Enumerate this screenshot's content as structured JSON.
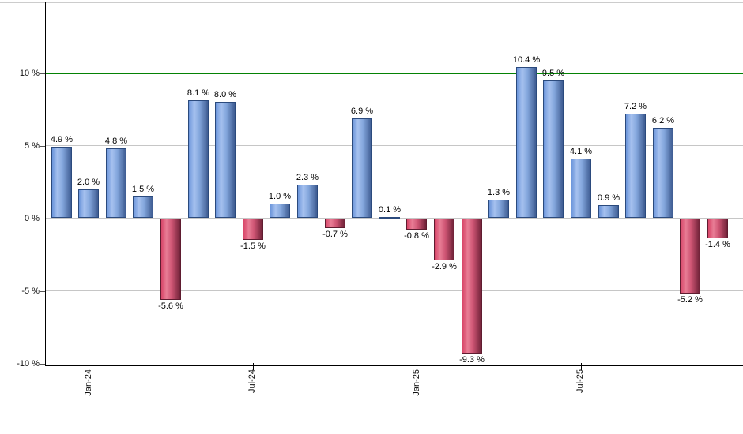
{
  "chart_data": {
    "type": "bar",
    "title": "",
    "xlabel": "",
    "ylabel": "",
    "unit": "%",
    "label_suffix": " %",
    "values": [
      4.9,
      2.0,
      4.8,
      1.5,
      -5.6,
      8.1,
      8.0,
      -1.5,
      1.0,
      2.3,
      -0.7,
      6.9,
      0.1,
      -0.8,
      -2.9,
      -9.3,
      1.3,
      10.4,
      9.5,
      4.1,
      0.9,
      7.2,
      6.2,
      -5.2,
      -1.4
    ],
    "bar_labels": [
      "4.9 %",
      "2.0 %",
      "4.8 %",
      "1.5 %",
      "-5.6 %",
      "8.1 %",
      "8.0 %",
      "-1.5 %",
      "1.0 %",
      "2.3 %",
      "-0.7 %",
      "6.9 %",
      "0.1 %",
      "-0.8 %",
      "-2.9 %",
      "-9.3 %",
      "1.3 %",
      "10.4 %",
      "9.5 %",
      "4.1 %",
      "0.9 %",
      "7.2 %",
      "6.2 %",
      "-5.2 %",
      "-1.4 %"
    ],
    "x_ticks": [
      {
        "label": "Jan-24",
        "bar_index": 1
      },
      {
        "label": "Jul-24",
        "bar_index": 7
      },
      {
        "label": "Jan-25",
        "bar_index": 13
      },
      {
        "label": "Jul-25",
        "bar_index": 19
      }
    ],
    "y_ticks": [
      {
        "label": "10 %",
        "value": 10,
        "gridline": false
      },
      {
        "label": "5 %",
        "value": 5,
        "gridline": true
      },
      {
        "label": "0 %",
        "value": 0,
        "gridline": true
      },
      {
        "label": "-5 %",
        "value": -5,
        "gridline": true
      },
      {
        "label": "-10 %",
        "value": -10,
        "gridline": false
      }
    ],
    "ylim": [
      -10.1,
      14.9
    ],
    "grid": true,
    "legend": null,
    "reference_line": {
      "value": 10,
      "color": "#048204"
    },
    "colors": {
      "positive_gradient": [
        "#6b95da",
        "#a6c1ef",
        "#84a7dd",
        "#3e5c92"
      ],
      "positive_border": "#2b4a7d",
      "negative_gradient": [
        "#d84568",
        "#e87d95",
        "#cf5574",
        "#702238"
      ],
      "negative_border": "#5f1c30",
      "grid": "#c6c6c6",
      "axis": "#000000",
      "top_border": "#cccccc",
      "background": "#ffffff",
      "label_text": "#000000"
    }
  }
}
